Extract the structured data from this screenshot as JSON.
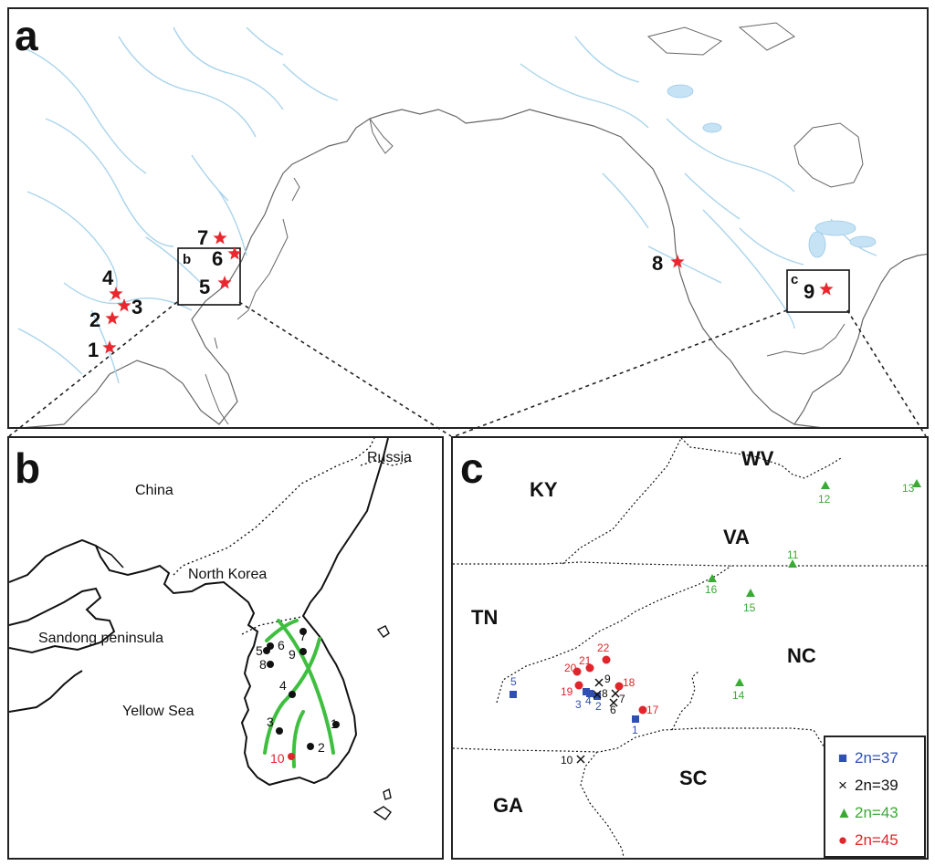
{
  "panels": {
    "a": {
      "letter": "a"
    },
    "b": {
      "letter": "b"
    },
    "c": {
      "letter": "c"
    }
  },
  "colors": {
    "star": "#e8282e",
    "river": "#a9d4ec",
    "lake": "#c6e3f5",
    "coast": "#555555",
    "green_line": "#3fbf3f",
    "blue": "#2f4fb5",
    "black": "#111111",
    "green": "#3aaa35",
    "red": "#e0262c"
  },
  "world_map": {
    "sites": [
      {
        "id": "1",
        "label": "1"
      },
      {
        "id": "2",
        "label": "2"
      },
      {
        "id": "3",
        "label": "3"
      },
      {
        "id": "4",
        "label": "4"
      },
      {
        "id": "5",
        "label": "5"
      },
      {
        "id": "6",
        "label": "6"
      },
      {
        "id": "7",
        "label": "7"
      },
      {
        "id": "8",
        "label": "8"
      },
      {
        "id": "9",
        "label": "9"
      }
    ],
    "inset_b_label": "b",
    "inset_c_label": "c"
  },
  "korea_map": {
    "places": {
      "russia": "Russia",
      "china": "China",
      "north_korea": "North Korea",
      "sandong": "Sandong peninsula",
      "yellow_sea": "Yellow Sea"
    },
    "sites": [
      "1",
      "2",
      "3",
      "4",
      "5",
      "6",
      "7",
      "8",
      "9",
      "10"
    ]
  },
  "us_map": {
    "states": {
      "ky": "KY",
      "wv": "WV",
      "va": "VA",
      "tn": "TN",
      "nc": "NC",
      "ga": "GA",
      "sc": "SC"
    },
    "sites_2n37": [
      "5",
      "3",
      "4",
      "2",
      "1"
    ],
    "sites_2n39": [
      "9",
      "8",
      "7",
      "6",
      "10"
    ],
    "sites_2n43": [
      "12",
      "13",
      "11",
      "16",
      "15",
      "14"
    ],
    "sites_2n45": [
      "20",
      "21",
      "22",
      "18",
      "19",
      "17"
    ]
  },
  "legend": {
    "items": [
      {
        "label": "2n=37",
        "symbol": "square",
        "color": "#2f4fb5"
      },
      {
        "label": "2n=39",
        "symbol": "cross",
        "color": "#111111"
      },
      {
        "label": "2n=43",
        "symbol": "triangle",
        "color": "#3aaa35"
      },
      {
        "label": "2n=45",
        "symbol": "circle",
        "color": "#e0262c"
      }
    ]
  }
}
